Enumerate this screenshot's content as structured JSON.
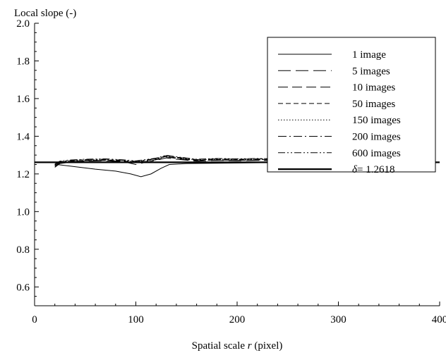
{
  "chart_data": {
    "type": "line",
    "title": "",
    "ylabel": "Local slope (-)",
    "xlabel_prefix": "Spatial scale ",
    "xlabel_var": "r",
    "xlabel_suffix": " (pixel)",
    "xlim": [
      0,
      400
    ],
    "ylim": [
      0.5,
      2.0
    ],
    "xticks": [
      "0",
      "100",
      "200",
      "300",
      "400"
    ],
    "yticks": [
      "2.0",
      "1.8",
      "1.6",
      "1.4",
      "1.2",
      "1.0",
      "0.8",
      "0.6"
    ],
    "ytick_values": [
      2.0,
      1.8,
      1.6,
      1.4,
      1.2,
      1.0,
      0.8,
      0.6
    ],
    "xtick_values": [
      0,
      100,
      200,
      300,
      400
    ],
    "legend_position": "top-right",
    "grid": false,
    "series": [
      {
        "name": "1 image",
        "dash": "",
        "width": 1,
        "x": [
          22,
          30,
          45,
          60,
          80,
          95,
          105,
          115,
          125,
          133,
          150,
          200,
          240
        ],
        "y": [
          1.25,
          1.245,
          1.235,
          1.225,
          1.215,
          1.2,
          1.185,
          1.2,
          1.23,
          1.25,
          1.255,
          1.258,
          1.26
        ]
      },
      {
        "name": "5 images",
        "dash": "18,7",
        "width": 1,
        "x": [
          20,
          25,
          35,
          50,
          70,
          90,
          100,
          110,
          120,
          130,
          140,
          160,
          180,
          200,
          220,
          240
        ],
        "y": [
          1.235,
          1.255,
          1.262,
          1.268,
          1.27,
          1.262,
          1.25,
          1.262,
          1.272,
          1.285,
          1.278,
          1.268,
          1.272,
          1.27,
          1.272,
          1.27
        ]
      },
      {
        "name": "10 images",
        "dash": "14,6",
        "width": 1,
        "x": [
          20,
          25,
          35,
          50,
          70,
          90,
          100,
          110,
          120,
          130,
          140,
          160,
          180,
          200,
          220,
          240
        ],
        "y": [
          1.24,
          1.258,
          1.265,
          1.27,
          1.272,
          1.265,
          1.258,
          1.266,
          1.275,
          1.29,
          1.282,
          1.27,
          1.274,
          1.272,
          1.274,
          1.272
        ]
      },
      {
        "name": "50 images",
        "dash": "7,4",
        "width": 1,
        "x": [
          20,
          25,
          35,
          50,
          70,
          90,
          100,
          110,
          120,
          130,
          140,
          160,
          180,
          200,
          220,
          240
        ],
        "y": [
          1.245,
          1.262,
          1.268,
          1.272,
          1.274,
          1.268,
          1.262,
          1.27,
          1.278,
          1.293,
          1.285,
          1.272,
          1.276,
          1.274,
          1.276,
          1.274
        ]
      },
      {
        "name": "150 images",
        "dash": "1.5,2.5",
        "width": 1,
        "x": [
          20,
          25,
          35,
          50,
          70,
          90,
          100,
          110,
          120,
          130,
          140,
          160,
          180,
          200,
          220,
          240
        ],
        "y": [
          1.248,
          1.264,
          1.27,
          1.274,
          1.276,
          1.27,
          1.265,
          1.272,
          1.28,
          1.295,
          1.287,
          1.274,
          1.278,
          1.276,
          1.278,
          1.276
        ]
      },
      {
        "name": "200 images",
        "dash": "12,4,2,4",
        "width": 1,
        "x": [
          20,
          25,
          35,
          50,
          70,
          90,
          100,
          110,
          120,
          130,
          140,
          160,
          180,
          200,
          220,
          240
        ],
        "y": [
          1.25,
          1.266,
          1.272,
          1.276,
          1.278,
          1.272,
          1.267,
          1.274,
          1.282,
          1.297,
          1.289,
          1.276,
          1.28,
          1.278,
          1.28,
          1.278
        ]
      },
      {
        "name": "600 images",
        "dash": "10,3,2,3,2,3",
        "width": 1,
        "x": [
          20,
          25,
          35,
          50,
          70,
          90,
          100,
          110,
          120,
          130,
          140,
          160,
          180,
          200,
          220,
          240
        ],
        "y": [
          1.252,
          1.268,
          1.274,
          1.278,
          1.28,
          1.274,
          1.269,
          1.276,
          1.284,
          1.299,
          1.291,
          1.278,
          1.282,
          1.28,
          1.282,
          1.28
        ]
      },
      {
        "name": "δ= 1.2618",
        "dash": "",
        "width": 2.2,
        "x": [
          0,
          400
        ],
        "y": [
          1.2618,
          1.2618
        ]
      }
    ],
    "legend_entries": [
      {
        "label": "1 image",
        "italic_prefix": ""
      },
      {
        "label": "5 images",
        "italic_prefix": ""
      },
      {
        "label": "10 images",
        "italic_prefix": ""
      },
      {
        "label": "50 images",
        "italic_prefix": ""
      },
      {
        "label": "150 images",
        "italic_prefix": ""
      },
      {
        "label": "200 images",
        "italic_prefix": ""
      },
      {
        "label": "600 images",
        "italic_prefix": ""
      },
      {
        "label": "= 1.2618",
        "italic_prefix": "δ"
      }
    ]
  }
}
